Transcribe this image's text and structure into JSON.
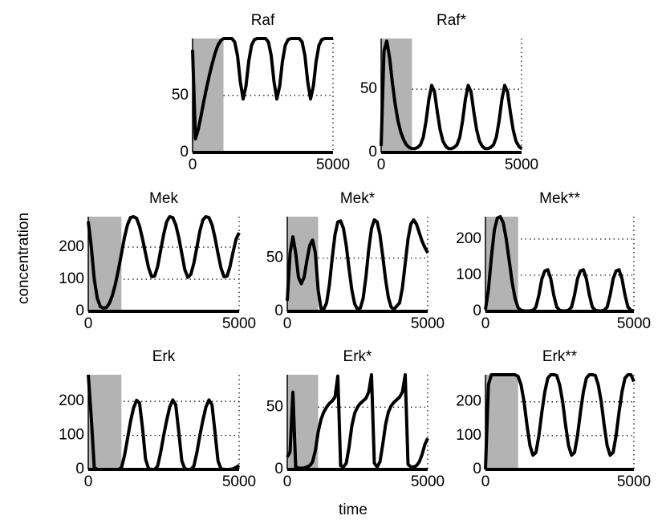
{
  "xlabel": "time",
  "ylabel": "concentration",
  "chart_data": [
    {
      "type": "line",
      "title": "Raf",
      "color": "#000000",
      "grid": true,
      "shaded_region": [
        0,
        1100
      ],
      "xlim": [
        0,
        5000
      ],
      "xticks": [
        0,
        5000
      ],
      "ylim": [
        0,
        100
      ],
      "yticks": [
        0,
        50
      ],
      "x": [
        0,
        100,
        200,
        300,
        400,
        500,
        600,
        700,
        800,
        900,
        1000,
        1100,
        1200,
        1300,
        1400,
        1500,
        1600,
        1700,
        1800,
        1900,
        2000,
        2100,
        2200,
        2300,
        2400,
        2500,
        2600,
        2700,
        2800,
        2900,
        3000,
        3100,
        3200,
        3300,
        3400,
        3500,
        3600,
        3700,
        3800,
        3900,
        4000,
        4100,
        4200,
        4300,
        4400,
        4500,
        4600,
        4700,
        4800,
        4900,
        5000
      ],
      "values": [
        90,
        12,
        20,
        32,
        45,
        57,
        68,
        78,
        87,
        94,
        98,
        100,
        100,
        100,
        100,
        97,
        85,
        62,
        47,
        58,
        80,
        94,
        99,
        100,
        100,
        100,
        100,
        97,
        85,
        62,
        47,
        58,
        80,
        94,
        99,
        100,
        100,
        100,
        100,
        97,
        85,
        62,
        47,
        58,
        80,
        94,
        99,
        100,
        100,
        100,
        100
      ]
    },
    {
      "type": "line",
      "title": "Raf*",
      "color": "#000000",
      "grid": true,
      "shaded_region": [
        0,
        1100
      ],
      "xlim": [
        0,
        5000
      ],
      "xticks": [
        0,
        5000
      ],
      "ylim": [
        0,
        90
      ],
      "yticks": [
        0,
        50
      ],
      "x": [
        0,
        100,
        200,
        300,
        400,
        500,
        600,
        700,
        800,
        900,
        1000,
        1100,
        1200,
        1300,
        1400,
        1500,
        1600,
        1700,
        1800,
        1900,
        2000,
        2100,
        2200,
        2300,
        2400,
        2500,
        2600,
        2700,
        2800,
        2900,
        3000,
        3100,
        3200,
        3300,
        3400,
        3500,
        3600,
        3700,
        3800,
        3900,
        4000,
        4100,
        4200,
        4300,
        4400,
        4500,
        4600,
        4700,
        4800,
        4900,
        5000
      ],
      "values": [
        5,
        80,
        88,
        75,
        55,
        38,
        25,
        16,
        10,
        6,
        4,
        3,
        3,
        4,
        6,
        12,
        25,
        42,
        53,
        48,
        32,
        18,
        9,
        5,
        3,
        3,
        4,
        6,
        12,
        25,
        42,
        53,
        48,
        32,
        18,
        9,
        5,
        3,
        3,
        4,
        6,
        12,
        25,
        42,
        53,
        48,
        32,
        18,
        9,
        5,
        3
      ]
    },
    {
      "type": "line",
      "title": "Mek",
      "color": "#000000",
      "grid": true,
      "shaded_region": [
        0,
        1100
      ],
      "xlim": [
        0,
        5000
      ],
      "xticks": [
        0,
        5000
      ],
      "ylim": [
        0,
        295
      ],
      "yticks": [
        0,
        100,
        200
      ],
      "x": [
        0,
        100,
        200,
        300,
        400,
        500,
        600,
        700,
        800,
        900,
        1000,
        1100,
        1200,
        1300,
        1400,
        1500,
        1600,
        1700,
        1800,
        1900,
        2000,
        2100,
        2200,
        2300,
        2400,
        2500,
        2600,
        2700,
        2800,
        2900,
        3000,
        3100,
        3200,
        3300,
        3400,
        3500,
        3600,
        3700,
        3800,
        3900,
        4000,
        4100,
        4200,
        4300,
        4400,
        4500,
        4600,
        4700,
        4800,
        4900,
        5000
      ],
      "values": [
        280,
        200,
        100,
        40,
        15,
        10,
        12,
        25,
        50,
        85,
        130,
        180,
        230,
        270,
        292,
        295,
        290,
        265,
        225,
        180,
        135,
        108,
        110,
        140,
        190,
        240,
        280,
        295,
        292,
        270,
        230,
        180,
        130,
        106,
        115,
        150,
        200,
        250,
        285,
        295,
        292,
        270,
        230,
        180,
        135,
        108,
        110,
        140,
        185,
        225,
        245
      ]
    },
    {
      "type": "line",
      "title": "Mek*",
      "color": "#000000",
      "grid": true,
      "shaded_region": [
        0,
        1100
      ],
      "xlim": [
        0,
        5000
      ],
      "xticks": [
        0,
        5000
      ],
      "ylim": [
        0,
        89
      ],
      "yticks": [
        0,
        50
      ],
      "x": [
        0,
        100,
        200,
        300,
        400,
        500,
        600,
        700,
        800,
        900,
        1000,
        1100,
        1200,
        1300,
        1400,
        1500,
        1600,
        1700,
        1800,
        1900,
        2000,
        2100,
        2200,
        2300,
        2400,
        2500,
        2600,
        2700,
        2800,
        2900,
        3000,
        3100,
        3200,
        3300,
        3400,
        3500,
        3600,
        3700,
        3800,
        3900,
        4000,
        4100,
        4200,
        4300,
        4400,
        4500,
        4600,
        4700,
        4800,
        4900,
        5000
      ],
      "values": [
        10,
        55,
        70,
        55,
        32,
        26,
        32,
        48,
        62,
        67,
        55,
        20,
        3,
        2,
        8,
        25,
        50,
        72,
        84,
        85,
        78,
        62,
        40,
        20,
        7,
        2,
        3,
        12,
        32,
        58,
        78,
        86,
        84,
        72,
        52,
        30,
        13,
        4,
        2,
        5,
        8,
        22,
        45,
        68,
        82,
        86,
        82,
        74,
        66,
        60,
        55
      ]
    },
    {
      "type": "line",
      "title": "Mek**",
      "color": "#000000",
      "grid": true,
      "shaded_region": [
        0,
        1100
      ],
      "xlim": [
        0,
        5000
      ],
      "xticks": [
        0,
        5000
      ],
      "ylim": [
        0,
        262
      ],
      "yticks": [
        0,
        100,
        200
      ],
      "x": [
        0,
        100,
        200,
        300,
        400,
        500,
        600,
        700,
        800,
        900,
        1000,
        1100,
        1200,
        1300,
        1400,
        1500,
        1600,
        1700,
        1800,
        1900,
        2000,
        2100,
        2200,
        2300,
        2400,
        2500,
        2600,
        2700,
        2800,
        2900,
        3000,
        3100,
        3200,
        3300,
        3400,
        3500,
        3600,
        3700,
        3800,
        3900,
        4000,
        4100,
        4200,
        4300,
        4400,
        4500,
        4600,
        4700,
        4800,
        4900,
        5000
      ],
      "values": [
        5,
        60,
        150,
        225,
        258,
        262,
        245,
        200,
        140,
        80,
        35,
        10,
        3,
        1,
        1,
        1,
        3,
        12,
        45,
        90,
        112,
        115,
        90,
        45,
        12,
        3,
        1,
        1,
        3,
        12,
        45,
        90,
        112,
        115,
        90,
        45,
        12,
        3,
        1,
        1,
        3,
        12,
        45,
        90,
        112,
        115,
        90,
        45,
        12,
        3,
        1
      ]
    },
    {
      "type": "line",
      "title": "Erk",
      "color": "#000000",
      "grid": true,
      "shaded_region": [
        0,
        1100
      ],
      "xlim": [
        0,
        5000
      ],
      "xticks": [
        0,
        5000
      ],
      "ylim": [
        0,
        278
      ],
      "yticks": [
        0,
        100,
        200
      ],
      "x": [
        0,
        100,
        200,
        300,
        400,
        500,
        600,
        700,
        800,
        900,
        1000,
        1100,
        1200,
        1300,
        1400,
        1500,
        1600,
        1700,
        1800,
        1900,
        2000,
        2100,
        2200,
        2300,
        2400,
        2500,
        2600,
        2700,
        2800,
        2900,
        3000,
        3100,
        3200,
        3300,
        3400,
        3500,
        3600,
        3700,
        3800,
        3900,
        4000,
        4100,
        4200,
        4300,
        4400,
        4500,
        4600,
        4700,
        4800,
        4900,
        5000
      ],
      "values": [
        278,
        150,
        5,
        0,
        0,
        0,
        0,
        0,
        0,
        0,
        0,
        5,
        40,
        90,
        140,
        180,
        203,
        195,
        120,
        30,
        2,
        0,
        0,
        10,
        50,
        100,
        145,
        183,
        204,
        190,
        110,
        25,
        2,
        0,
        0,
        10,
        50,
        100,
        145,
        183,
        204,
        190,
        110,
        25,
        2,
        0,
        0,
        0,
        2,
        6,
        12
      ]
    },
    {
      "type": "line",
      "title": "Erk*",
      "color": "#000000",
      "grid": true,
      "shaded_region": [
        0,
        1100
      ],
      "xlim": [
        0,
        5000
      ],
      "xticks": [
        0,
        5000
      ],
      "ylim": [
        0,
        76
      ],
      "yticks": [
        0,
        50
      ],
      "x": [
        0,
        100,
        200,
        300,
        400,
        500,
        600,
        700,
        800,
        900,
        1000,
        1100,
        1200,
        1300,
        1400,
        1500,
        1600,
        1700,
        1800,
        1900,
        2000,
        2100,
        2200,
        2300,
        2400,
        2500,
        2600,
        2700,
        2800,
        2900,
        3000,
        3100,
        3200,
        3300,
        3400,
        3500,
        3600,
        3700,
        3800,
        3900,
        4000,
        4100,
        4200,
        4300,
        4400,
        4500,
        4600,
        4700,
        4800,
        4900,
        5000
      ],
      "values": [
        10,
        14,
        62,
        2,
        1,
        1,
        1,
        2,
        3,
        6,
        15,
        30,
        40,
        46,
        50,
        53,
        55,
        58,
        75,
        3,
        2,
        5,
        18,
        35,
        45,
        50,
        53,
        55,
        57,
        62,
        76,
        5,
        2,
        6,
        20,
        36,
        46,
        51,
        54,
        56,
        58,
        62,
        76,
        4,
        2,
        2,
        3,
        6,
        12,
        20,
        25
      ]
    },
    {
      "type": "line",
      "title": "Erk**",
      "color": "#000000",
      "grid": true,
      "shaded_region": [
        0,
        1100
      ],
      "xlim": [
        0,
        5000
      ],
      "xticks": [
        0,
        5000
      ],
      "ylim": [
        0,
        280
      ],
      "yticks": [
        0,
        100,
        200
      ],
      "x": [
        0,
        100,
        200,
        300,
        400,
        500,
        600,
        700,
        800,
        900,
        1000,
        1100,
        1200,
        1300,
        1400,
        1500,
        1600,
        1700,
        1800,
        1900,
        2000,
        2100,
        2200,
        2300,
        2400,
        2500,
        2600,
        2700,
        2800,
        2900,
        3000,
        3100,
        3200,
        3300,
        3400,
        3500,
        3600,
        3700,
        3800,
        3900,
        4000,
        4100,
        4200,
        4300,
        4400,
        4500,
        4600,
        4700,
        4800,
        4900,
        5000
      ],
      "values": [
        0,
        250,
        280,
        280,
        280,
        280,
        280,
        280,
        280,
        280,
        280,
        275,
        250,
        200,
        130,
        70,
        42,
        50,
        100,
        170,
        230,
        270,
        280,
        280,
        278,
        250,
        200,
        130,
        70,
        42,
        50,
        100,
        170,
        230,
        270,
        280,
        280,
        278,
        250,
        200,
        130,
        70,
        42,
        50,
        100,
        170,
        230,
        270,
        280,
        280,
        260
      ]
    }
  ]
}
